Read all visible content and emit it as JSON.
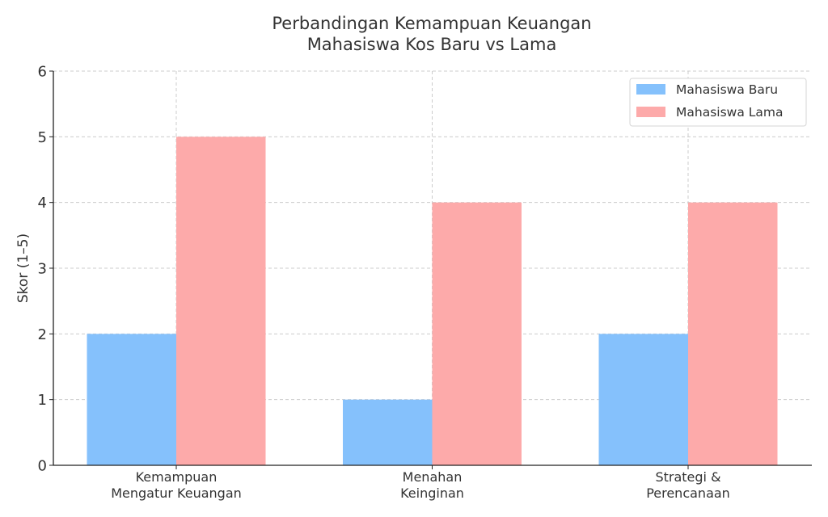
{
  "chart_data": {
    "type": "bar",
    "title_lines": [
      "Perbandingan Kemampuan Keuangan",
      "Mahasiswa Kos Baru vs Lama"
    ],
    "xlabel": "",
    "ylabel": "Skor (1–5)",
    "ylim": [
      0,
      6
    ],
    "yticks": [
      0,
      1,
      2,
      3,
      4,
      5,
      6
    ],
    "grid": true,
    "legend_position": "top-right",
    "categories": [
      [
        "Kemampuan",
        "Mengatur Keuangan"
      ],
      [
        "Menahan",
        "Keinginan"
      ],
      [
        "Strategi &",
        "Perencanaan"
      ]
    ],
    "series": [
      {
        "name": "Mahasiswa Baru",
        "color": "#85C1FC",
        "values": [
          2,
          1,
          2
        ]
      },
      {
        "name": "Mahasiswa Lama",
        "color": "#FDAAAA",
        "values": [
          5,
          4,
          4
        ]
      }
    ]
  }
}
